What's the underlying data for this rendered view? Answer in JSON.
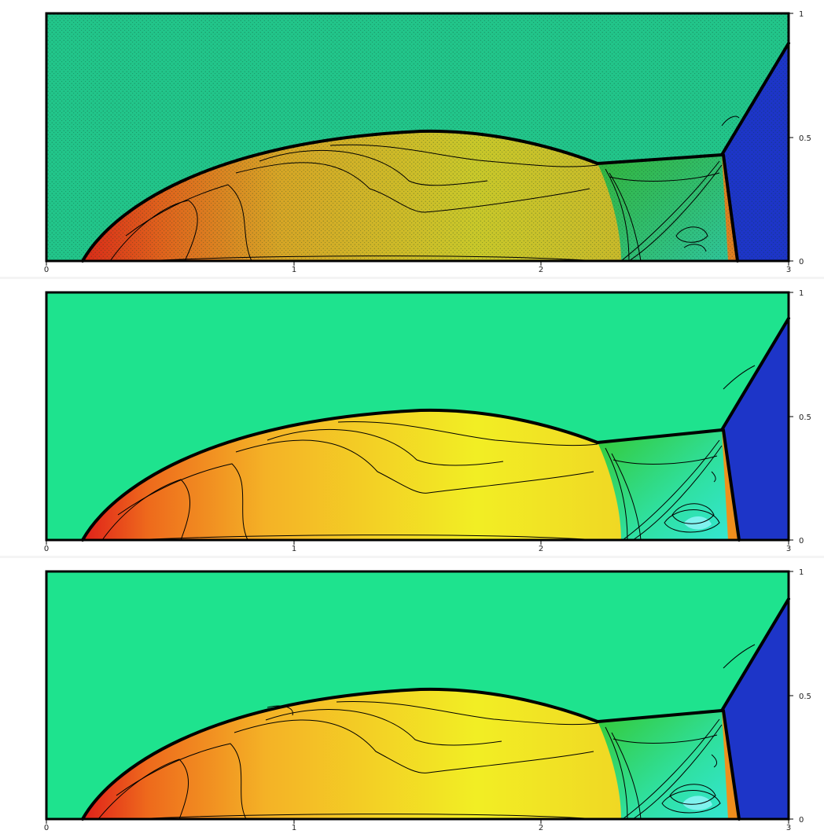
{
  "figure": {
    "panels": [
      {
        "id": "mesh",
        "shows_mesh": true
      },
      {
        "id": "solution-a",
        "shows_mesh": false
      },
      {
        "id": "solution-b",
        "shows_mesh": false
      }
    ],
    "x_ticks": [
      "0",
      "1",
      "2",
      "3"
    ],
    "y_ticks": [
      "0",
      "0.5",
      "1"
    ],
    "x_domain": [
      0,
      3
    ],
    "y_domain": [
      0,
      1
    ],
    "colors": {
      "freestream": "#1ee38e",
      "mesh_freestream": "#22c58a",
      "inflow_region": "#1d35c8",
      "stagnation": "#e0201a",
      "post_shock_orange": "#ee8a1c",
      "post_shock_yellow": "#eaec20",
      "mach_green": "#35c934",
      "cyan_region": "#34e6d2",
      "contour_line": "#000000"
    }
  },
  "chart_data": [
    {
      "type": "heatmap",
      "panel": "mesh",
      "x_range": [
        0,
        3
      ],
      "y_range": [
        0,
        1
      ],
      "x_tick_labels": [
        "0",
        "1",
        "2",
        "3"
      ],
      "y_tick_labels": [
        "0",
        "0.5",
        "1"
      ]
    },
    {
      "type": "heatmap",
      "panel": "solution-a",
      "x_range": [
        0,
        3
      ],
      "y_range": [
        0,
        1
      ],
      "x_tick_labels": [
        "0",
        "1",
        "2",
        "3"
      ],
      "y_tick_labels": [
        "0",
        "0.5",
        "1"
      ]
    },
    {
      "type": "heatmap",
      "panel": "solution-b",
      "x_range": [
        0,
        3
      ],
      "y_range": [
        0,
        1
      ],
      "x_tick_labels": [
        "0",
        "1",
        "2",
        "3"
      ],
      "y_tick_labels": [
        "0",
        "0.5",
        "1"
      ]
    }
  ]
}
